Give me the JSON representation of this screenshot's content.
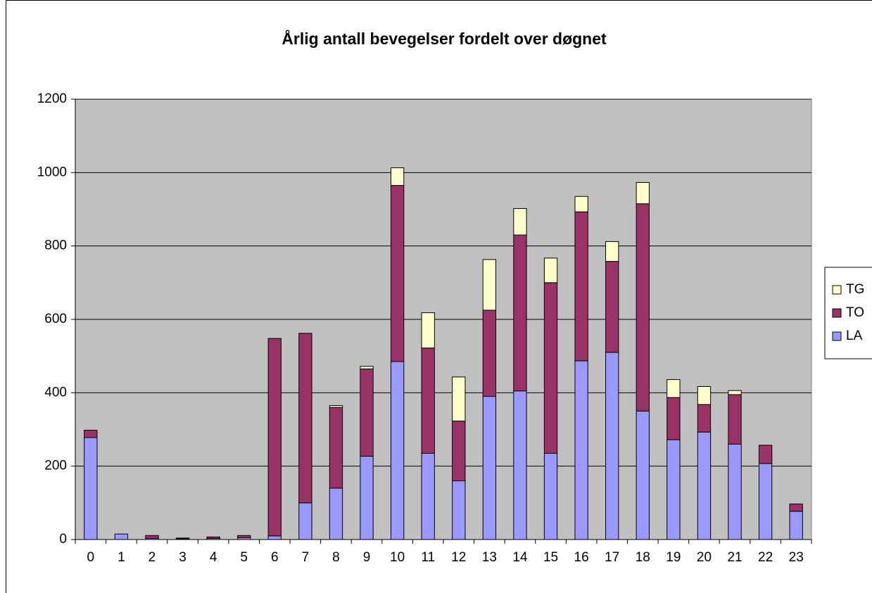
{
  "chart_data": {
    "type": "stacked_bar",
    "title": "Årlig antall bevegelser fordelt over døgnet",
    "categories": [
      "0",
      "1",
      "2",
      "3",
      "4",
      "5",
      "6",
      "7",
      "8",
      "9",
      "10",
      "11",
      "12",
      "13",
      "14",
      "15",
      "16",
      "17",
      "18",
      "19",
      "20",
      "21",
      "22",
      "23"
    ],
    "series": [
      {
        "name": "LA",
        "color": "#9999ff",
        "values": [
          278,
          15,
          3,
          2,
          3,
          5,
          10,
          100,
          140,
          227,
          485,
          235,
          160,
          390,
          405,
          235,
          487,
          510,
          350,
          272,
          293,
          260,
          207,
          77
        ]
      },
      {
        "name": "TO",
        "color": "#993366",
        "values": [
          20,
          0,
          8,
          2,
          4,
          6,
          538,
          462,
          220,
          238,
          480,
          287,
          163,
          235,
          425,
          465,
          406,
          248,
          565,
          115,
          75,
          135,
          50,
          20
        ]
      },
      {
        "name": "TG",
        "color": "#ffffcc",
        "values": [
          0,
          0,
          0,
          0,
          0,
          0,
          0,
          0,
          5,
          7,
          48,
          96,
          120,
          138,
          72,
          67,
          42,
          54,
          58,
          49,
          49,
          11,
          0,
          0
        ]
      }
    ],
    "ylim": [
      0,
      1200
    ],
    "yticks": [
      0,
      200,
      400,
      600,
      800,
      1000,
      1200
    ],
    "grid": true,
    "legend": "right"
  }
}
